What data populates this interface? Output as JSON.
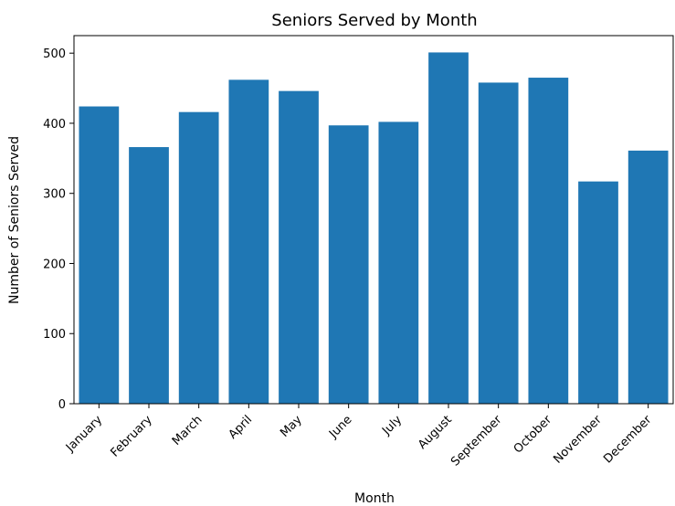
{
  "chart_data": {
    "type": "bar",
    "title": "Seniors Served by Month",
    "xlabel": "Month",
    "ylabel": "Number of Seniors Served",
    "categories": [
      "January",
      "February",
      "March",
      "April",
      "May",
      "June",
      "July",
      "August",
      "September",
      "October",
      "November",
      "December"
    ],
    "values": [
      424,
      366,
      416,
      462,
      446,
      397,
      402,
      501,
      458,
      465,
      317,
      361
    ],
    "ylim": [
      0,
      525
    ],
    "yticks": [
      0,
      100,
      200,
      300,
      400,
      500
    ],
    "grid": false,
    "legend": "none",
    "bar_color": "#1f77b4"
  }
}
